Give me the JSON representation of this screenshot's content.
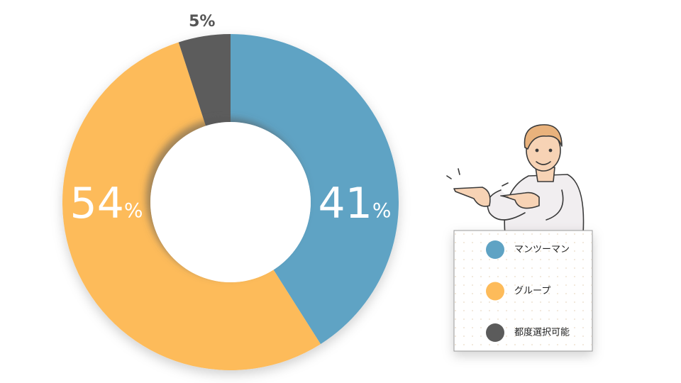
{
  "chart_data": {
    "type": "donut",
    "categories": [
      "マンツーマン",
      "グループ",
      "都度選択可能"
    ],
    "values": [
      41,
      54,
      5
    ],
    "unit": "%",
    "colors": [
      "#5fa3c4",
      "#fdbb5a",
      "#5b5b5b"
    ],
    "legend": "right"
  }
}
